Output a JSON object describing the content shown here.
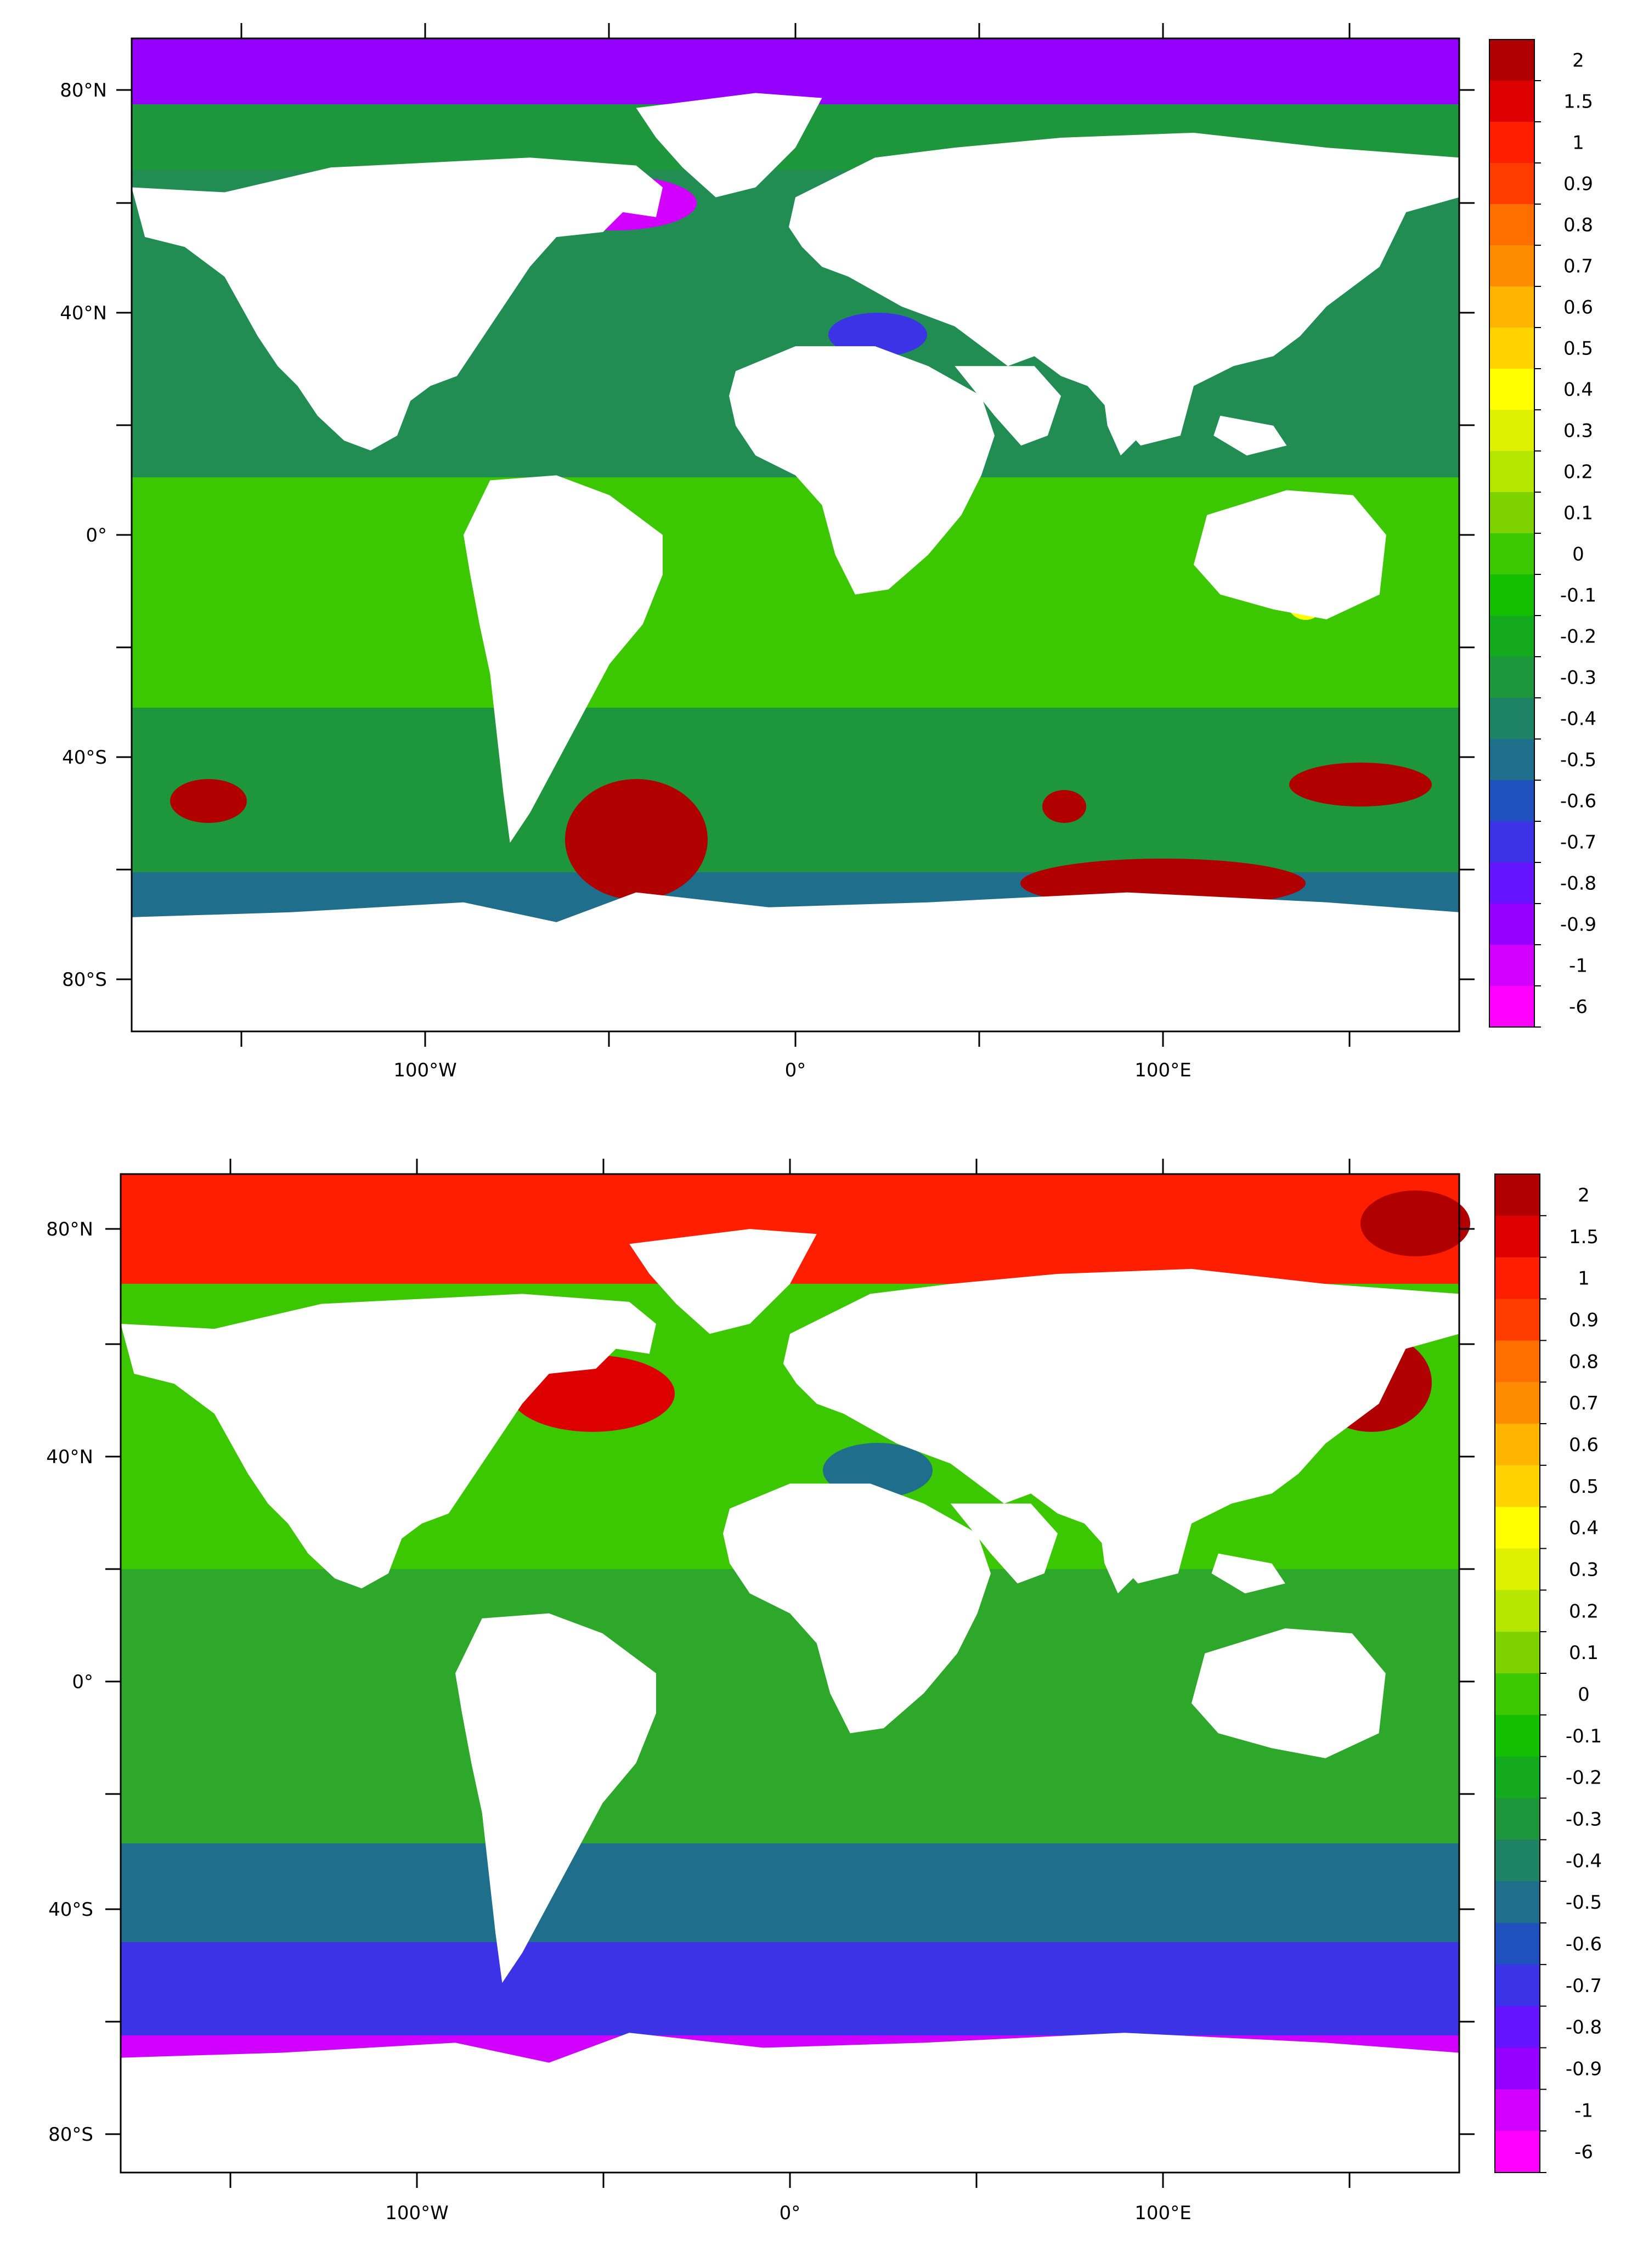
{
  "colorbar": {
    "labels": [
      "2",
      "1.5",
      "1",
      "0.9",
      "0.8",
      "0.7",
      "0.6",
      "0.5",
      "0.4",
      "0.3",
      "0.2",
      "0.1",
      "0",
      "-0.1",
      "-0.2",
      "-0.3",
      "-0.4",
      "-0.5",
      "-0.6",
      "-0.7",
      "-0.8",
      "-0.9",
      "-1",
      "-6"
    ],
    "colors": [
      "#b00000",
      "#dd0000",
      "#ff1e00",
      "#ff3c00",
      "#ff6e00",
      "#ff8c00",
      "#ffb400",
      "#ffd200",
      "#ffff00",
      "#ddf000",
      "#b4e600",
      "#7dd200",
      "#3cc800",
      "#14be00",
      "#14aa1e",
      "#1e963c",
      "#1e8264",
      "#1e6e8c",
      "#1e50be",
      "#3c32e6",
      "#6414ff",
      "#9600ff",
      "#d200ff",
      "#ff00ff"
    ]
  },
  "lat_labels": [
    "80°N",
    "40°N",
    "0°",
    "40°S",
    "80°S"
  ],
  "lon_labels": [
    "100°W",
    "0°",
    "100°E"
  ],
  "colors": {
    "land": "#ffffff",
    "frame": "#000000"
  },
  "panels": [
    {
      "id": "top",
      "lat_labels": [
        "80°N",
        "40°N",
        "0°",
        "40°S",
        "80°S"
      ],
      "lon_labels": [
        "100°W",
        "0°",
        "100°E"
      ],
      "colorbar_labels": [
        "2",
        "1.5",
        "1",
        "0.9",
        "0.8",
        "0.7",
        "0.6",
        "0.5",
        "0.4",
        "0.3",
        "0.2",
        "0.1",
        "0",
        "-0.1",
        "-0.2",
        "-0.3",
        "-0.4",
        "-0.5",
        "-0.6",
        "-0.7",
        "-0.8",
        "-0.9",
        "-1",
        "-6"
      ]
    },
    {
      "id": "bottom",
      "lat_labels": [
        "80°N",
        "40°N",
        "0°",
        "40°S",
        "80°S"
      ],
      "lon_labels": [
        "100°W",
        "0°",
        "100°E"
      ],
      "colorbar_labels": [
        "2",
        "1.5",
        "1",
        "0.9",
        "0.8",
        "0.7",
        "0.6",
        "0.5",
        "0.4",
        "0.3",
        "0.2",
        "0.1",
        "0",
        "-0.1",
        "-0.2",
        "-0.3",
        "-0.4",
        "-0.5",
        "-0.6",
        "-0.7",
        "-0.8",
        "-0.9",
        "-1",
        "-6"
      ]
    }
  ]
}
